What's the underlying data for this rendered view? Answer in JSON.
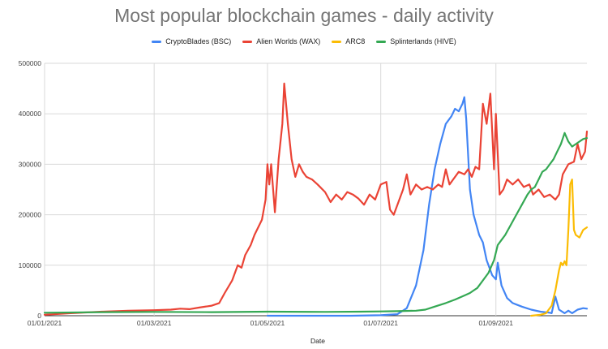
{
  "chart_data": {
    "type": "line",
    "title": "Most popular blockchain games - daily activity",
    "xlabel": "Date",
    "ylabel": "",
    "ylim": [
      0,
      500000
    ],
    "xlim": [
      "2021-01-01",
      "2021-10-20"
    ],
    "grid": true,
    "legend_position": "top",
    "y_ticks": [
      "0",
      "100000",
      "200000",
      "300000",
      "400000",
      "500000"
    ],
    "y_tick_values": [
      0,
      100000,
      200000,
      300000,
      400000,
      500000
    ],
    "x_ticks": [
      "01/01/2021",
      "01/03/2021",
      "01/05/2021",
      "01/07/2021",
      "01/09/2021"
    ],
    "x_tick_values": [
      "2021-01-01",
      "2021-03-01",
      "2021-05-01",
      "2021-07-01",
      "2021-09-01"
    ],
    "series": [
      {
        "name": "CryptoBlades (BSC)",
        "color": "#4285f4",
        "points": [
          [
            "2021-05-01",
            0
          ],
          [
            "2021-06-15",
            0
          ],
          [
            "2021-07-01",
            1000
          ],
          [
            "2021-07-10",
            3000
          ],
          [
            "2021-07-15",
            15000
          ],
          [
            "2021-07-20",
            60000
          ],
          [
            "2021-07-24",
            130000
          ],
          [
            "2021-07-27",
            220000
          ],
          [
            "2021-07-30",
            290000
          ],
          [
            "2021-08-02",
            340000
          ],
          [
            "2021-08-05",
            380000
          ],
          [
            "2021-08-08",
            395000
          ],
          [
            "2021-08-10",
            410000
          ],
          [
            "2021-08-12",
            405000
          ],
          [
            "2021-08-14",
            420000
          ],
          [
            "2021-08-15",
            433000
          ],
          [
            "2021-08-16",
            390000
          ],
          [
            "2021-08-18",
            250000
          ],
          [
            "2021-08-20",
            200000
          ],
          [
            "2021-08-23",
            160000
          ],
          [
            "2021-08-25",
            145000
          ],
          [
            "2021-08-27",
            110000
          ],
          [
            "2021-08-30",
            80000
          ],
          [
            "2021-09-01",
            72000
          ],
          [
            "2021-09-02",
            105000
          ],
          [
            "2021-09-04",
            60000
          ],
          [
            "2021-09-07",
            35000
          ],
          [
            "2021-09-10",
            25000
          ],
          [
            "2021-09-15",
            18000
          ],
          [
            "2021-09-20",
            12000
          ],
          [
            "2021-09-25",
            8000
          ],
          [
            "2021-09-30",
            6000
          ],
          [
            "2021-10-01",
            5000
          ],
          [
            "2021-10-03",
            38000
          ],
          [
            "2021-10-05",
            12000
          ],
          [
            "2021-10-08",
            5000
          ],
          [
            "2021-10-10",
            10000
          ],
          [
            "2021-10-12",
            5000
          ],
          [
            "2021-10-15",
            12000
          ],
          [
            "2021-10-18",
            15000
          ],
          [
            "2021-10-20",
            14000
          ]
        ]
      },
      {
        "name": "Alien Worlds (WAX)",
        "color": "#ea4335",
        "points": [
          [
            "2021-01-01",
            2000
          ],
          [
            "2021-01-15",
            5000
          ],
          [
            "2021-02-01",
            8000
          ],
          [
            "2021-02-15",
            10000
          ],
          [
            "2021-03-01",
            11000
          ],
          [
            "2021-03-10",
            12000
          ],
          [
            "2021-03-15",
            14000
          ],
          [
            "2021-03-20",
            13000
          ],
          [
            "2021-03-25",
            16000
          ],
          [
            "2021-04-01",
            20000
          ],
          [
            "2021-04-05",
            25000
          ],
          [
            "2021-04-08",
            45000
          ],
          [
            "2021-04-12",
            70000
          ],
          [
            "2021-04-15",
            100000
          ],
          [
            "2021-04-17",
            95000
          ],
          [
            "2021-04-19",
            120000
          ],
          [
            "2021-04-22",
            140000
          ],
          [
            "2021-04-24",
            160000
          ],
          [
            "2021-04-26",
            175000
          ],
          [
            "2021-04-28",
            190000
          ],
          [
            "2021-04-30",
            230000
          ],
          [
            "2021-05-01",
            300000
          ],
          [
            "2021-05-02",
            260000
          ],
          [
            "2021-05-03",
            300000
          ],
          [
            "2021-05-05",
            205000
          ],
          [
            "2021-05-07",
            310000
          ],
          [
            "2021-05-09",
            380000
          ],
          [
            "2021-05-10",
            460000
          ],
          [
            "2021-05-12",
            380000
          ],
          [
            "2021-05-14",
            310000
          ],
          [
            "2021-05-16",
            275000
          ],
          [
            "2021-05-18",
            300000
          ],
          [
            "2021-05-20",
            285000
          ],
          [
            "2021-05-22",
            275000
          ],
          [
            "2021-05-25",
            270000
          ],
          [
            "2021-05-28",
            260000
          ],
          [
            "2021-06-01",
            245000
          ],
          [
            "2021-06-04",
            225000
          ],
          [
            "2021-06-07",
            240000
          ],
          [
            "2021-06-10",
            230000
          ],
          [
            "2021-06-13",
            245000
          ],
          [
            "2021-06-16",
            240000
          ],
          [
            "2021-06-19",
            232000
          ],
          [
            "2021-06-22",
            220000
          ],
          [
            "2021-06-25",
            240000
          ],
          [
            "2021-06-28",
            230000
          ],
          [
            "2021-07-01",
            260000
          ],
          [
            "2021-07-04",
            265000
          ],
          [
            "2021-07-06",
            210000
          ],
          [
            "2021-07-08",
            200000
          ],
          [
            "2021-07-10",
            220000
          ],
          [
            "2021-07-13",
            250000
          ],
          [
            "2021-07-15",
            280000
          ],
          [
            "2021-07-17",
            240000
          ],
          [
            "2021-07-20",
            260000
          ],
          [
            "2021-07-23",
            250000
          ],
          [
            "2021-07-26",
            255000
          ],
          [
            "2021-07-29",
            250000
          ],
          [
            "2021-08-01",
            260000
          ],
          [
            "2021-08-03",
            255000
          ],
          [
            "2021-08-05",
            290000
          ],
          [
            "2021-08-07",
            260000
          ],
          [
            "2021-08-09",
            270000
          ],
          [
            "2021-08-12",
            285000
          ],
          [
            "2021-08-15",
            280000
          ],
          [
            "2021-08-17",
            290000
          ],
          [
            "2021-08-19",
            275000
          ],
          [
            "2021-08-21",
            295000
          ],
          [
            "2021-08-23",
            290000
          ],
          [
            "2021-08-25",
            420000
          ],
          [
            "2021-08-27",
            380000
          ],
          [
            "2021-08-29",
            440000
          ],
          [
            "2021-08-31",
            290000
          ],
          [
            "2021-09-01",
            400000
          ],
          [
            "2021-09-03",
            240000
          ],
          [
            "2021-09-05",
            250000
          ],
          [
            "2021-09-07",
            270000
          ],
          [
            "2021-09-10",
            260000
          ],
          [
            "2021-09-13",
            270000
          ],
          [
            "2021-09-16",
            255000
          ],
          [
            "2021-09-19",
            260000
          ],
          [
            "2021-09-21",
            240000
          ],
          [
            "2021-09-24",
            250000
          ],
          [
            "2021-09-27",
            235000
          ],
          [
            "2021-09-30",
            240000
          ],
          [
            "2021-10-03",
            230000
          ],
          [
            "2021-10-05",
            240000
          ],
          [
            "2021-10-07",
            280000
          ],
          [
            "2021-10-10",
            300000
          ],
          [
            "2021-10-13",
            305000
          ],
          [
            "2021-10-15",
            340000
          ],
          [
            "2021-10-17",
            310000
          ],
          [
            "2021-10-19",
            325000
          ],
          [
            "2021-10-20",
            365000
          ]
        ]
      },
      {
        "name": "ARC8",
        "color": "#fbbc04",
        "points": [
          [
            "2021-09-20",
            0
          ],
          [
            "2021-09-25",
            2000
          ],
          [
            "2021-09-28",
            5000
          ],
          [
            "2021-10-01",
            20000
          ],
          [
            "2021-10-03",
            50000
          ],
          [
            "2021-10-05",
            90000
          ],
          [
            "2021-10-06",
            105000
          ],
          [
            "2021-10-07",
            100000
          ],
          [
            "2021-10-08",
            108000
          ],
          [
            "2021-10-09",
            100000
          ],
          [
            "2021-10-10",
            170000
          ],
          [
            "2021-10-11",
            260000
          ],
          [
            "2021-10-12",
            270000
          ],
          [
            "2021-10-13",
            170000
          ],
          [
            "2021-10-14",
            160000
          ],
          [
            "2021-10-16",
            155000
          ],
          [
            "2021-10-18",
            170000
          ],
          [
            "2021-10-20",
            175000
          ]
        ]
      },
      {
        "name": "Splinterlands  (HIVE)",
        "color": "#34a853",
        "points": [
          [
            "2021-01-01",
            6000
          ],
          [
            "2021-02-01",
            7000
          ],
          [
            "2021-03-01",
            7500
          ],
          [
            "2021-04-01",
            7000
          ],
          [
            "2021-05-01",
            8000
          ],
          [
            "2021-06-01",
            7500
          ],
          [
            "2021-06-20",
            8000
          ],
          [
            "2021-07-01",
            8500
          ],
          [
            "2021-07-10",
            9000
          ],
          [
            "2021-07-20",
            10000
          ],
          [
            "2021-07-25",
            12000
          ],
          [
            "2021-07-30",
            18000
          ],
          [
            "2021-08-05",
            25000
          ],
          [
            "2021-08-10",
            32000
          ],
          [
            "2021-08-15",
            40000
          ],
          [
            "2021-08-18",
            45000
          ],
          [
            "2021-08-20",
            50000
          ],
          [
            "2021-08-22",
            55000
          ],
          [
            "2021-08-25",
            70000
          ],
          [
            "2021-08-28",
            85000
          ],
          [
            "2021-08-31",
            110000
          ],
          [
            "2021-09-02",
            140000
          ],
          [
            "2021-09-04",
            150000
          ],
          [
            "2021-09-06",
            160000
          ],
          [
            "2021-09-09",
            180000
          ],
          [
            "2021-09-12",
            200000
          ],
          [
            "2021-09-15",
            220000
          ],
          [
            "2021-09-18",
            240000
          ],
          [
            "2021-09-20",
            250000
          ],
          [
            "2021-09-22",
            255000
          ],
          [
            "2021-09-24",
            270000
          ],
          [
            "2021-09-26",
            285000
          ],
          [
            "2021-09-28",
            290000
          ],
          [
            "2021-09-30",
            300000
          ],
          [
            "2021-10-02",
            310000
          ],
          [
            "2021-10-04",
            325000
          ],
          [
            "2021-10-06",
            340000
          ],
          [
            "2021-10-08",
            362000
          ],
          [
            "2021-10-10",
            345000
          ],
          [
            "2021-10-12",
            335000
          ],
          [
            "2021-10-14",
            340000
          ],
          [
            "2021-10-16",
            345000
          ],
          [
            "2021-10-18",
            350000
          ],
          [
            "2021-10-20",
            352000
          ]
        ]
      }
    ]
  }
}
